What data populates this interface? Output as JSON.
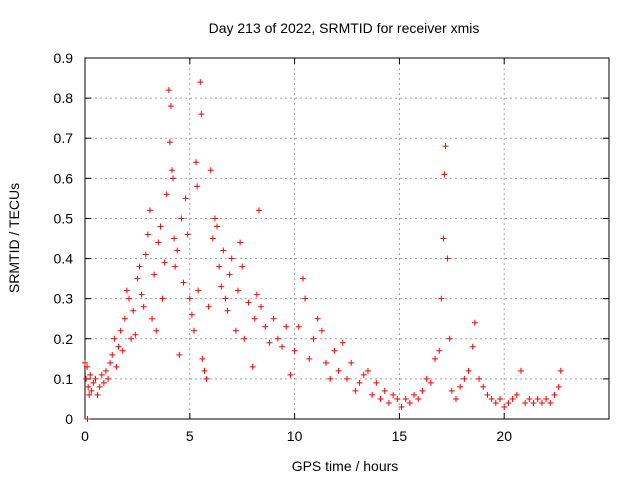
{
  "chart_data": {
    "type": "scatter",
    "title": "Day 213 of 2022, SRMTID for receiver xmis",
    "xlabel": "GPS time / hours",
    "ylabel": "SRMTID / TECUs",
    "xlim": [
      0,
      25
    ],
    "ylim": [
      0,
      0.9
    ],
    "xticks": [
      0,
      5,
      10,
      15,
      20
    ],
    "yticks": [
      0,
      0.1,
      0.2,
      0.3,
      0.4,
      0.5,
      0.6,
      0.7,
      0.8,
      0.9
    ],
    "grid": true,
    "marker": "+",
    "color": "#ff0000",
    "series": [
      {
        "name": "SRMTID",
        "points": [
          [
            0.0,
            0.14
          ],
          [
            0.05,
            0.1
          ],
          [
            0.1,
            0.13
          ],
          [
            0.12,
            0.0
          ],
          [
            0.15,
            0.08
          ],
          [
            0.2,
            0.06
          ],
          [
            0.25,
            0.11
          ],
          [
            0.3,
            0.07
          ],
          [
            0.4,
            0.09
          ],
          [
            0.5,
            0.1
          ],
          [
            0.6,
            0.06
          ],
          [
            0.7,
            0.08
          ],
          [
            0.8,
            0.11
          ],
          [
            0.9,
            0.09
          ],
          [
            1.0,
            0.12
          ],
          [
            1.1,
            0.1
          ],
          [
            1.2,
            0.14
          ],
          [
            1.3,
            0.16
          ],
          [
            1.4,
            0.2
          ],
          [
            1.5,
            0.13
          ],
          [
            1.6,
            0.18
          ],
          [
            1.7,
            0.22
          ],
          [
            1.8,
            0.17
          ],
          [
            1.9,
            0.25
          ],
          [
            2.0,
            0.32
          ],
          [
            2.1,
            0.3
          ],
          [
            2.2,
            0.2
          ],
          [
            2.3,
            0.27
          ],
          [
            2.4,
            0.21
          ],
          [
            2.5,
            0.35
          ],
          [
            2.6,
            0.38
          ],
          [
            2.7,
            0.31
          ],
          [
            2.8,
            0.28
          ],
          [
            2.9,
            0.41
          ],
          [
            3.0,
            0.46
          ],
          [
            3.1,
            0.52
          ],
          [
            3.2,
            0.25
          ],
          [
            3.3,
            0.36
          ],
          [
            3.4,
            0.22
          ],
          [
            3.5,
            0.44
          ],
          [
            3.6,
            0.48
          ],
          [
            3.7,
            0.3
          ],
          [
            3.8,
            0.39
          ],
          [
            3.9,
            0.56
          ],
          [
            4.0,
            0.82
          ],
          [
            4.05,
            0.69
          ],
          [
            4.1,
            0.78
          ],
          [
            4.15,
            0.62
          ],
          [
            4.2,
            0.6
          ],
          [
            4.25,
            0.45
          ],
          [
            4.3,
            0.38
          ],
          [
            4.4,
            0.42
          ],
          [
            4.5,
            0.16
          ],
          [
            4.6,
            0.5
          ],
          [
            4.7,
            0.34
          ],
          [
            4.8,
            0.55
          ],
          [
            4.9,
            0.46
          ],
          [
            5.0,
            0.3
          ],
          [
            5.1,
            0.26
          ],
          [
            5.2,
            0.22
          ],
          [
            5.3,
            0.64
          ],
          [
            5.35,
            0.58
          ],
          [
            5.4,
            0.32
          ],
          [
            5.5,
            0.84
          ],
          [
            5.55,
            0.76
          ],
          [
            5.6,
            0.15
          ],
          [
            5.7,
            0.12
          ],
          [
            5.8,
            0.1
          ],
          [
            5.9,
            0.28
          ],
          [
            6.0,
            0.62
          ],
          [
            6.1,
            0.45
          ],
          [
            6.2,
            0.5
          ],
          [
            6.3,
            0.48
          ],
          [
            6.4,
            0.38
          ],
          [
            6.5,
            0.33
          ],
          [
            6.6,
            0.42
          ],
          [
            6.7,
            0.3
          ],
          [
            6.8,
            0.27
          ],
          [
            6.9,
            0.36
          ],
          [
            7.0,
            0.4
          ],
          [
            7.2,
            0.22
          ],
          [
            7.3,
            0.32
          ],
          [
            7.4,
            0.44
          ],
          [
            7.5,
            0.38
          ],
          [
            7.6,
            0.2
          ],
          [
            7.8,
            0.29
          ],
          [
            8.0,
            0.13
          ],
          [
            8.1,
            0.25
          ],
          [
            8.2,
            0.31
          ],
          [
            8.3,
            0.52
          ],
          [
            8.4,
            0.28
          ],
          [
            8.6,
            0.23
          ],
          [
            8.8,
            0.19
          ],
          [
            9.0,
            0.25
          ],
          [
            9.2,
            0.2
          ],
          [
            9.4,
            0.18
          ],
          [
            9.6,
            0.23
          ],
          [
            9.8,
            0.11
          ],
          [
            10.0,
            0.17
          ],
          [
            10.2,
            0.23
          ],
          [
            10.4,
            0.35
          ],
          [
            10.5,
            0.3
          ],
          [
            10.7,
            0.15
          ],
          [
            10.9,
            0.2
          ],
          [
            11.1,
            0.25
          ],
          [
            11.3,
            0.22
          ],
          [
            11.5,
            0.14
          ],
          [
            11.7,
            0.1
          ],
          [
            11.9,
            0.17
          ],
          [
            12.1,
            0.12
          ],
          [
            12.3,
            0.19
          ],
          [
            12.5,
            0.1
          ],
          [
            12.7,
            0.14
          ],
          [
            12.9,
            0.07
          ],
          [
            13.1,
            0.09
          ],
          [
            13.3,
            0.11
          ],
          [
            13.5,
            0.12
          ],
          [
            13.7,
            0.06
          ],
          [
            13.9,
            0.09
          ],
          [
            14.1,
            0.05
          ],
          [
            14.3,
            0.07
          ],
          [
            14.5,
            0.04
          ],
          [
            14.7,
            0.06
          ],
          [
            14.9,
            0.05
          ],
          [
            15.1,
            0.03
          ],
          [
            15.3,
            0.05
          ],
          [
            15.5,
            0.04
          ],
          [
            15.7,
            0.06
          ],
          [
            15.9,
            0.05
          ],
          [
            16.1,
            0.07
          ],
          [
            16.3,
            0.1
          ],
          [
            16.5,
            0.09
          ],
          [
            16.7,
            0.15
          ],
          [
            16.9,
            0.17
          ],
          [
            17.0,
            0.3
          ],
          [
            17.1,
            0.45
          ],
          [
            17.15,
            0.61
          ],
          [
            17.2,
            0.68
          ],
          [
            17.3,
            0.4
          ],
          [
            17.4,
            0.2
          ],
          [
            17.5,
            0.07
          ],
          [
            17.7,
            0.05
          ],
          [
            17.9,
            0.08
          ],
          [
            18.1,
            0.1
          ],
          [
            18.3,
            0.12
          ],
          [
            18.5,
            0.18
          ],
          [
            18.6,
            0.24
          ],
          [
            18.8,
            0.1
          ],
          [
            19.0,
            0.08
          ],
          [
            19.2,
            0.06
          ],
          [
            19.4,
            0.05
          ],
          [
            19.6,
            0.04
          ],
          [
            19.8,
            0.05
          ],
          [
            20.0,
            0.03
          ],
          [
            20.2,
            0.04
          ],
          [
            20.4,
            0.05
          ],
          [
            20.6,
            0.06
          ],
          [
            20.8,
            0.12
          ],
          [
            21.0,
            0.04
          ],
          [
            21.2,
            0.05
          ],
          [
            21.4,
            0.04
          ],
          [
            21.6,
            0.05
          ],
          [
            21.8,
            0.04
          ],
          [
            22.0,
            0.05
          ],
          [
            22.2,
            0.04
          ],
          [
            22.4,
            0.06
          ],
          [
            22.6,
            0.08
          ],
          [
            22.7,
            0.12
          ]
        ]
      }
    ]
  }
}
